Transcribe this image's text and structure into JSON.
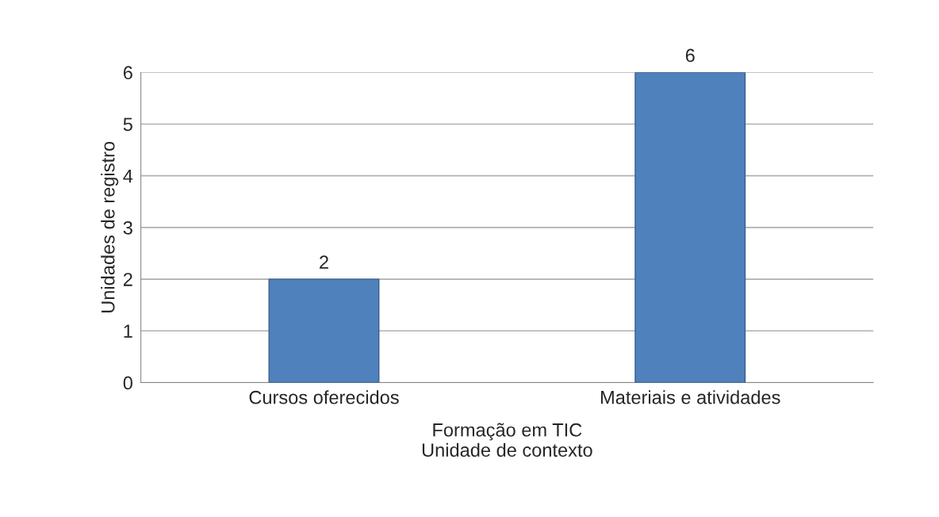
{
  "chart_data": {
    "type": "bar",
    "categories": [
      "Cursos oferecidos",
      "Materiais e atividades"
    ],
    "values": [
      2,
      6
    ],
    "color": "#4f81bd",
    "ylabel": "Unidades de registro",
    "xlabel": "Unidade de contexto",
    "annotations": [
      "Formação em TIC"
    ],
    "ylim": [
      0,
      6
    ],
    "yticks": [
      0,
      1,
      2,
      3,
      4,
      5,
      6
    ],
    "grid": "y",
    "data_labels": true
  }
}
